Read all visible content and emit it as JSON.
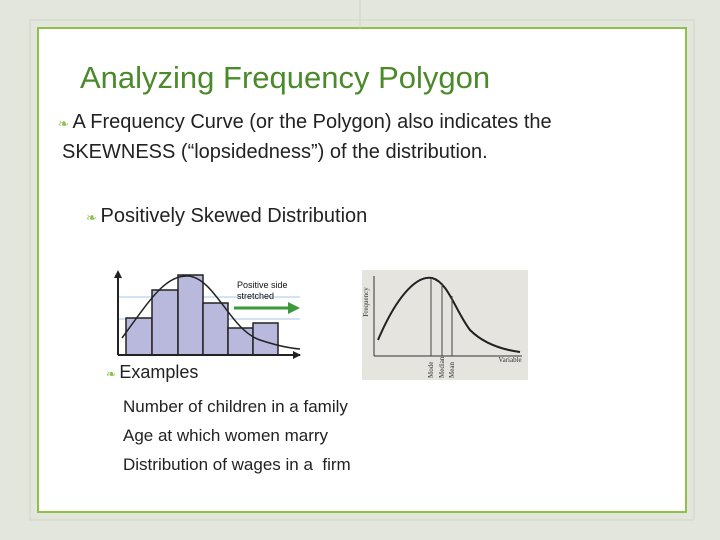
{
  "title": "Analyzing Frequency Polygon",
  "bullets": [
    {
      "text": "A Frequency Curve (or the Polygon) also indicates the SKEWNESS (“lopsidedness”) of the distribution.",
      "sub_bullets": [
        {
          "text": "Positively Skewed Distribution"
        }
      ]
    }
  ],
  "figures": {
    "histogram": {
      "annotation": [
        "Positive side",
        "stretched"
      ]
    },
    "curve": {
      "y_label": "Frequency",
      "x_label": "Variable",
      "markers": [
        "Mode",
        "Median",
        "Mean"
      ]
    }
  },
  "examples": {
    "heading": "Examples",
    "items": [
      "Number of children in a family",
      "Age at which women marry",
      "Distribution of wages in a  firm"
    ]
  }
}
